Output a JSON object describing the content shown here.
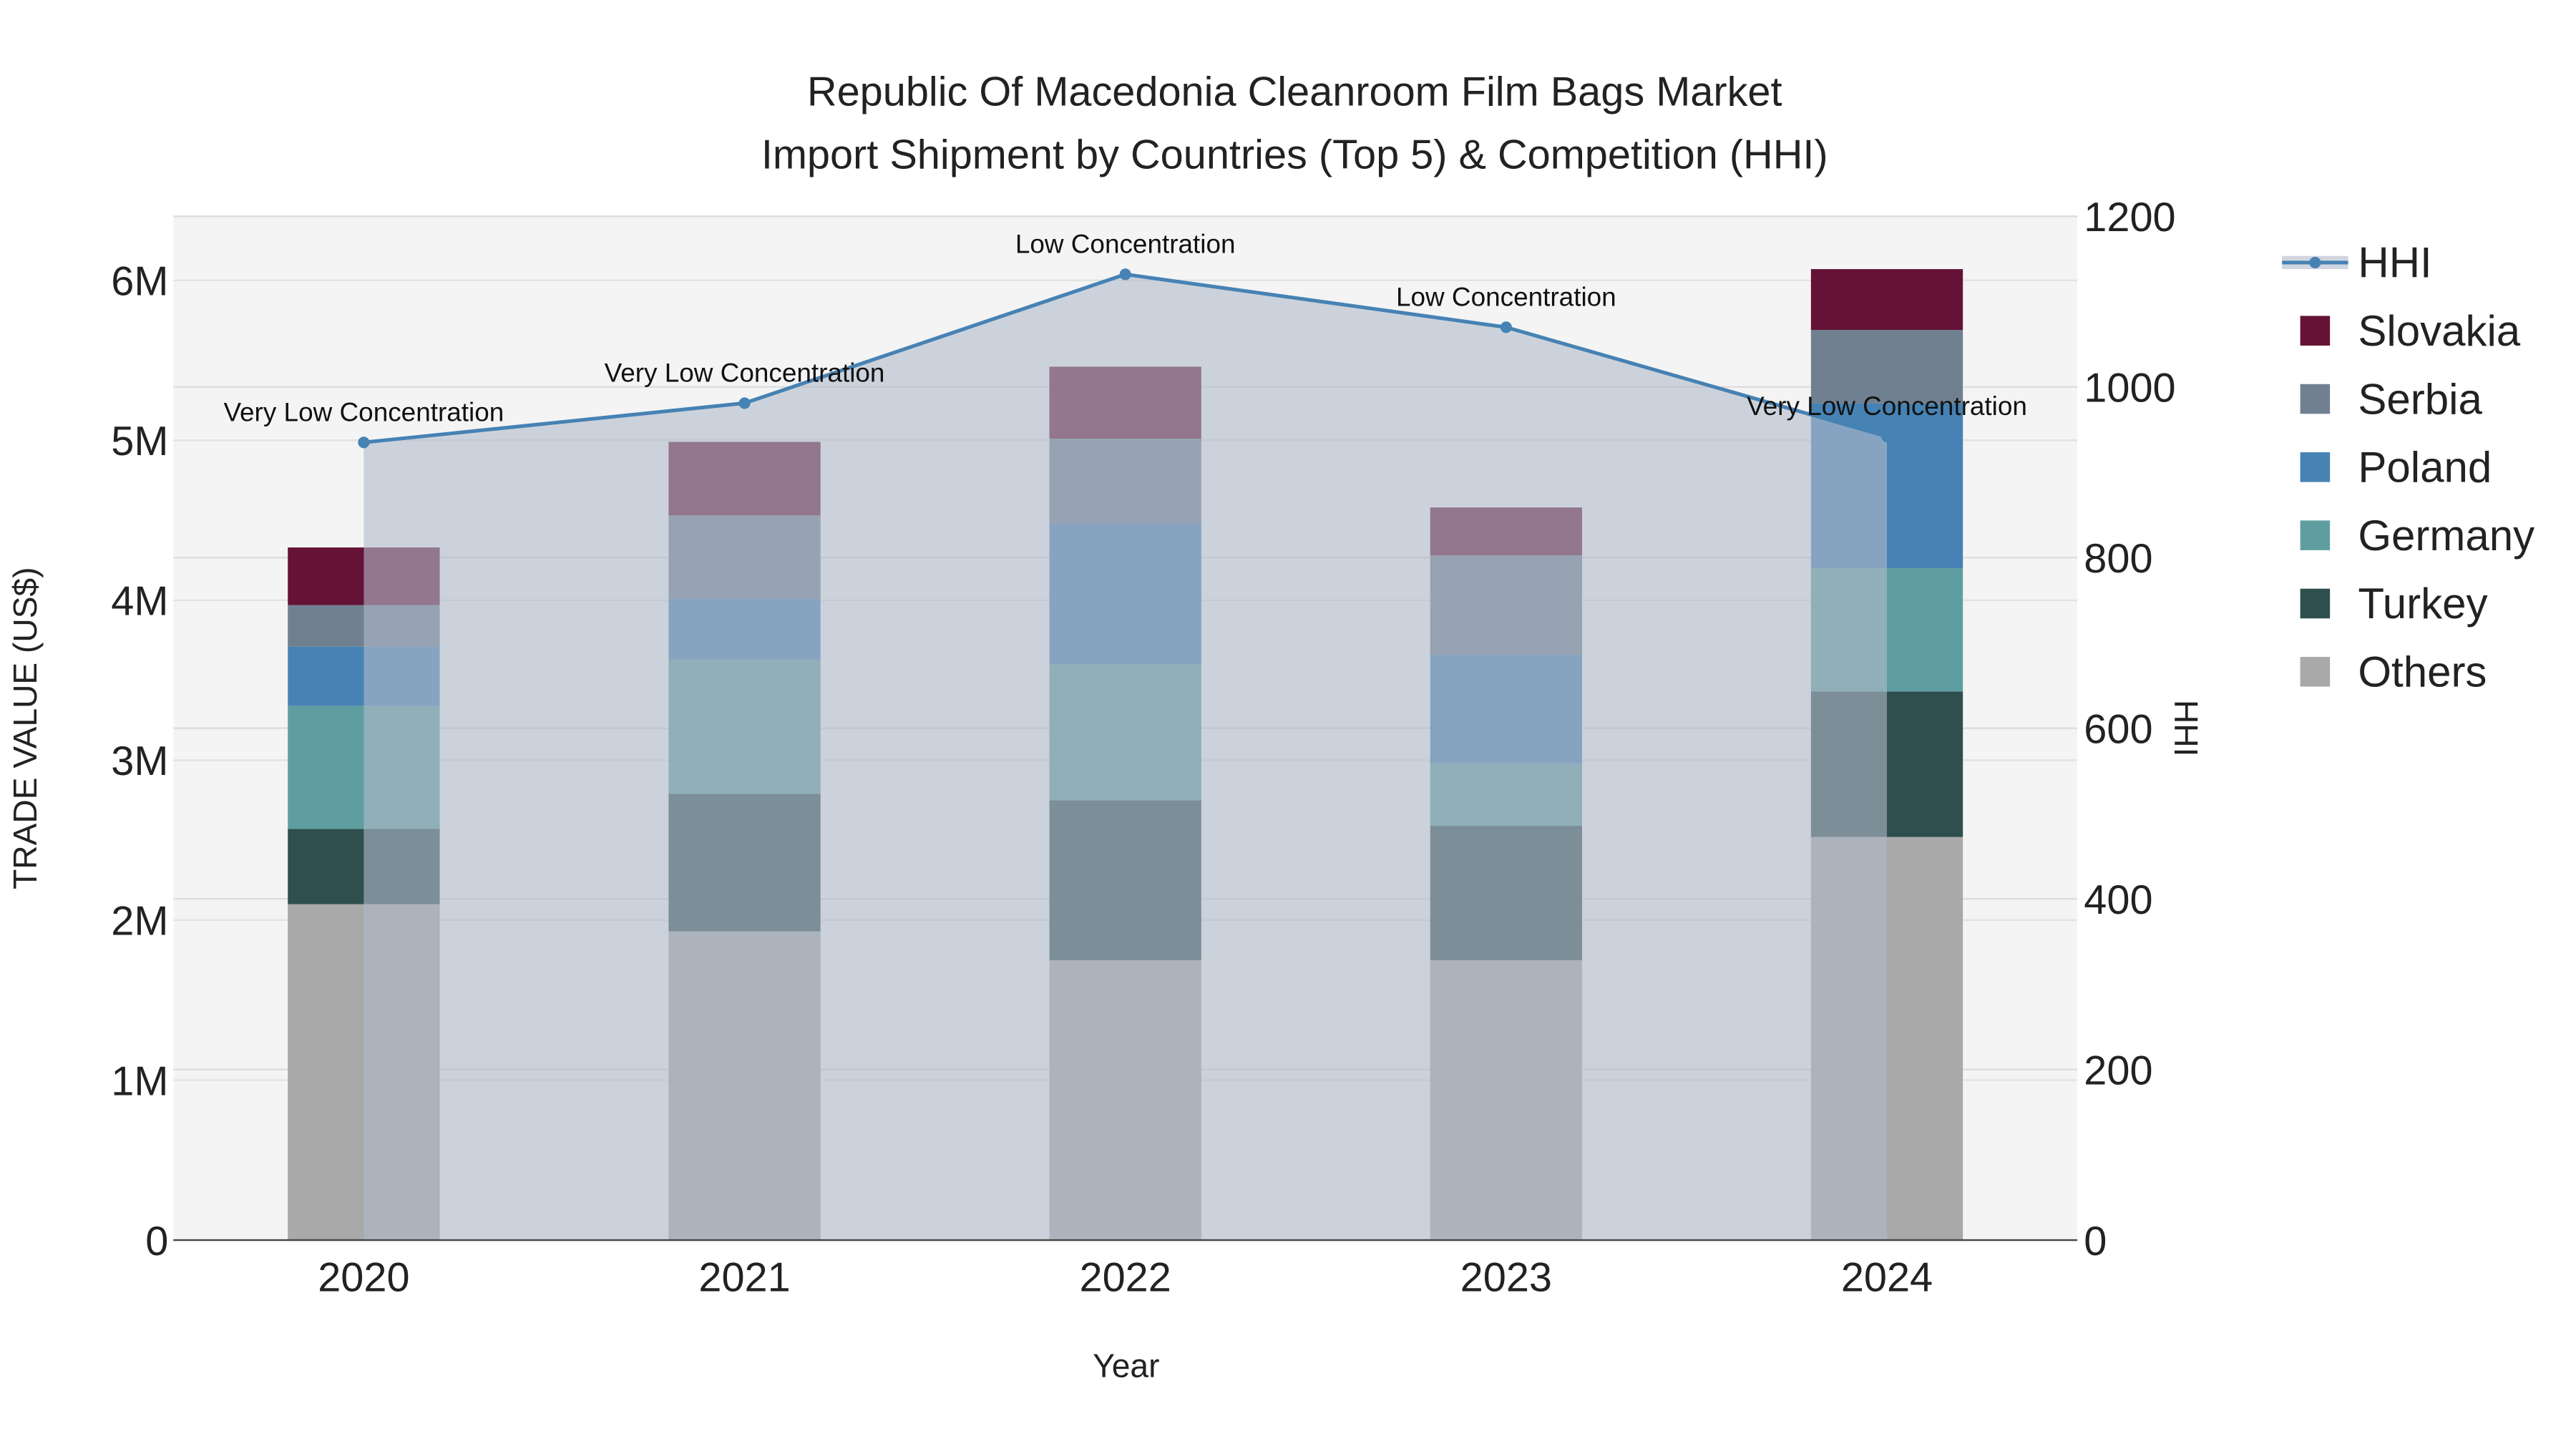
{
  "chart_data": {
    "type": "bar",
    "title_line1": "Republic Of Macedonia Cleanroom Film Bags Market",
    "title_line2": "Import Shipment by Countries (Top 5) & Competition (HHI)",
    "xlabel": "Year",
    "ylabel": "TRADE VALUE (US$)",
    "y2label": "HHI",
    "categories": [
      "2020",
      "2021",
      "2022",
      "2023",
      "2024"
    ],
    "ylim": [
      0,
      6400000
    ],
    "yticks": [
      0,
      1000000,
      2000000,
      3000000,
      4000000,
      5000000,
      6000000
    ],
    "ytick_labels": [
      "0",
      "1M",
      "2M",
      "3M",
      "4M",
      "5M",
      "6M"
    ],
    "y2lim": [
      0,
      1200
    ],
    "y2ticks": [
      0,
      200,
      400,
      600,
      800,
      1000,
      1200
    ],
    "y2tick_labels": [
      "0",
      "200",
      "400",
      "600",
      "800",
      "1000",
      "1200"
    ],
    "grid": true,
    "legend_position": "right",
    "series": [
      {
        "name": "Others",
        "color": "#A9A9A9",
        "values": [
          2100000,
          1930000,
          1750000,
          1750000,
          2520000
        ]
      },
      {
        "name": "Turkey",
        "color": "#2F4F4F",
        "values": [
          470000,
          860000,
          1000000,
          840000,
          910000
        ]
      },
      {
        "name": "Germany",
        "color": "#5F9EA0",
        "values": [
          770000,
          840000,
          850000,
          390000,
          770000
        ]
      },
      {
        "name": "Poland",
        "color": "#4682B4",
        "values": [
          370000,
          380000,
          880000,
          680000,
          1030000
        ]
      },
      {
        "name": "Serbia",
        "color": "#708090",
        "values": [
          260000,
          520000,
          530000,
          620000,
          460000
        ]
      },
      {
        "name": "Slovakia",
        "color": "#641235",
        "values": [
          360000,
          460000,
          450000,
          300000,
          380000
        ]
      }
    ],
    "hhi": {
      "name": "HHI",
      "color": "#4682B4",
      "values": [
        935,
        981,
        1132,
        1070,
        942
      ],
      "annotations": [
        "Very Low Concentration",
        "Very Low Concentration",
        "Low Concentration",
        "Low Concentration",
        "Very Low Concentration"
      ]
    },
    "legend_order": [
      "HHI",
      "Slovakia",
      "Serbia",
      "Poland",
      "Germany",
      "Turkey",
      "Others"
    ]
  }
}
